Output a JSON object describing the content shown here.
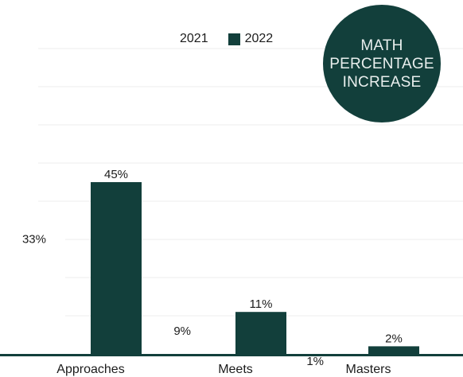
{
  "chart_data": {
    "type": "bar",
    "title": "MATH PERCENTAGE INCREASE",
    "categories": [
      "Approaches",
      "Meets",
      "Masters"
    ],
    "series": [
      {
        "name": "2021",
        "values": [
          33,
          9,
          1
        ],
        "labels": [
          "33%",
          "9%",
          "1%"
        ],
        "color": "#ffffff"
      },
      {
        "name": "2022",
        "values": [
          45,
          11,
          2
        ],
        "labels": [
          "45%",
          "11%",
          "2%"
        ],
        "color": "#123f3b"
      }
    ],
    "ylim": [
      0,
      100
    ],
    "grid": true,
    "legend": "top-center"
  },
  "badge": {
    "lines": [
      "MATH",
      "PERCENTAGE",
      "INCREASE"
    ],
    "background": "#123f3b",
    "text_color": "#e9efee"
  },
  "legend": {
    "items": [
      {
        "label": "2021",
        "color": "#ffffff"
      },
      {
        "label": "2022",
        "color": "#123f3b"
      }
    ]
  }
}
